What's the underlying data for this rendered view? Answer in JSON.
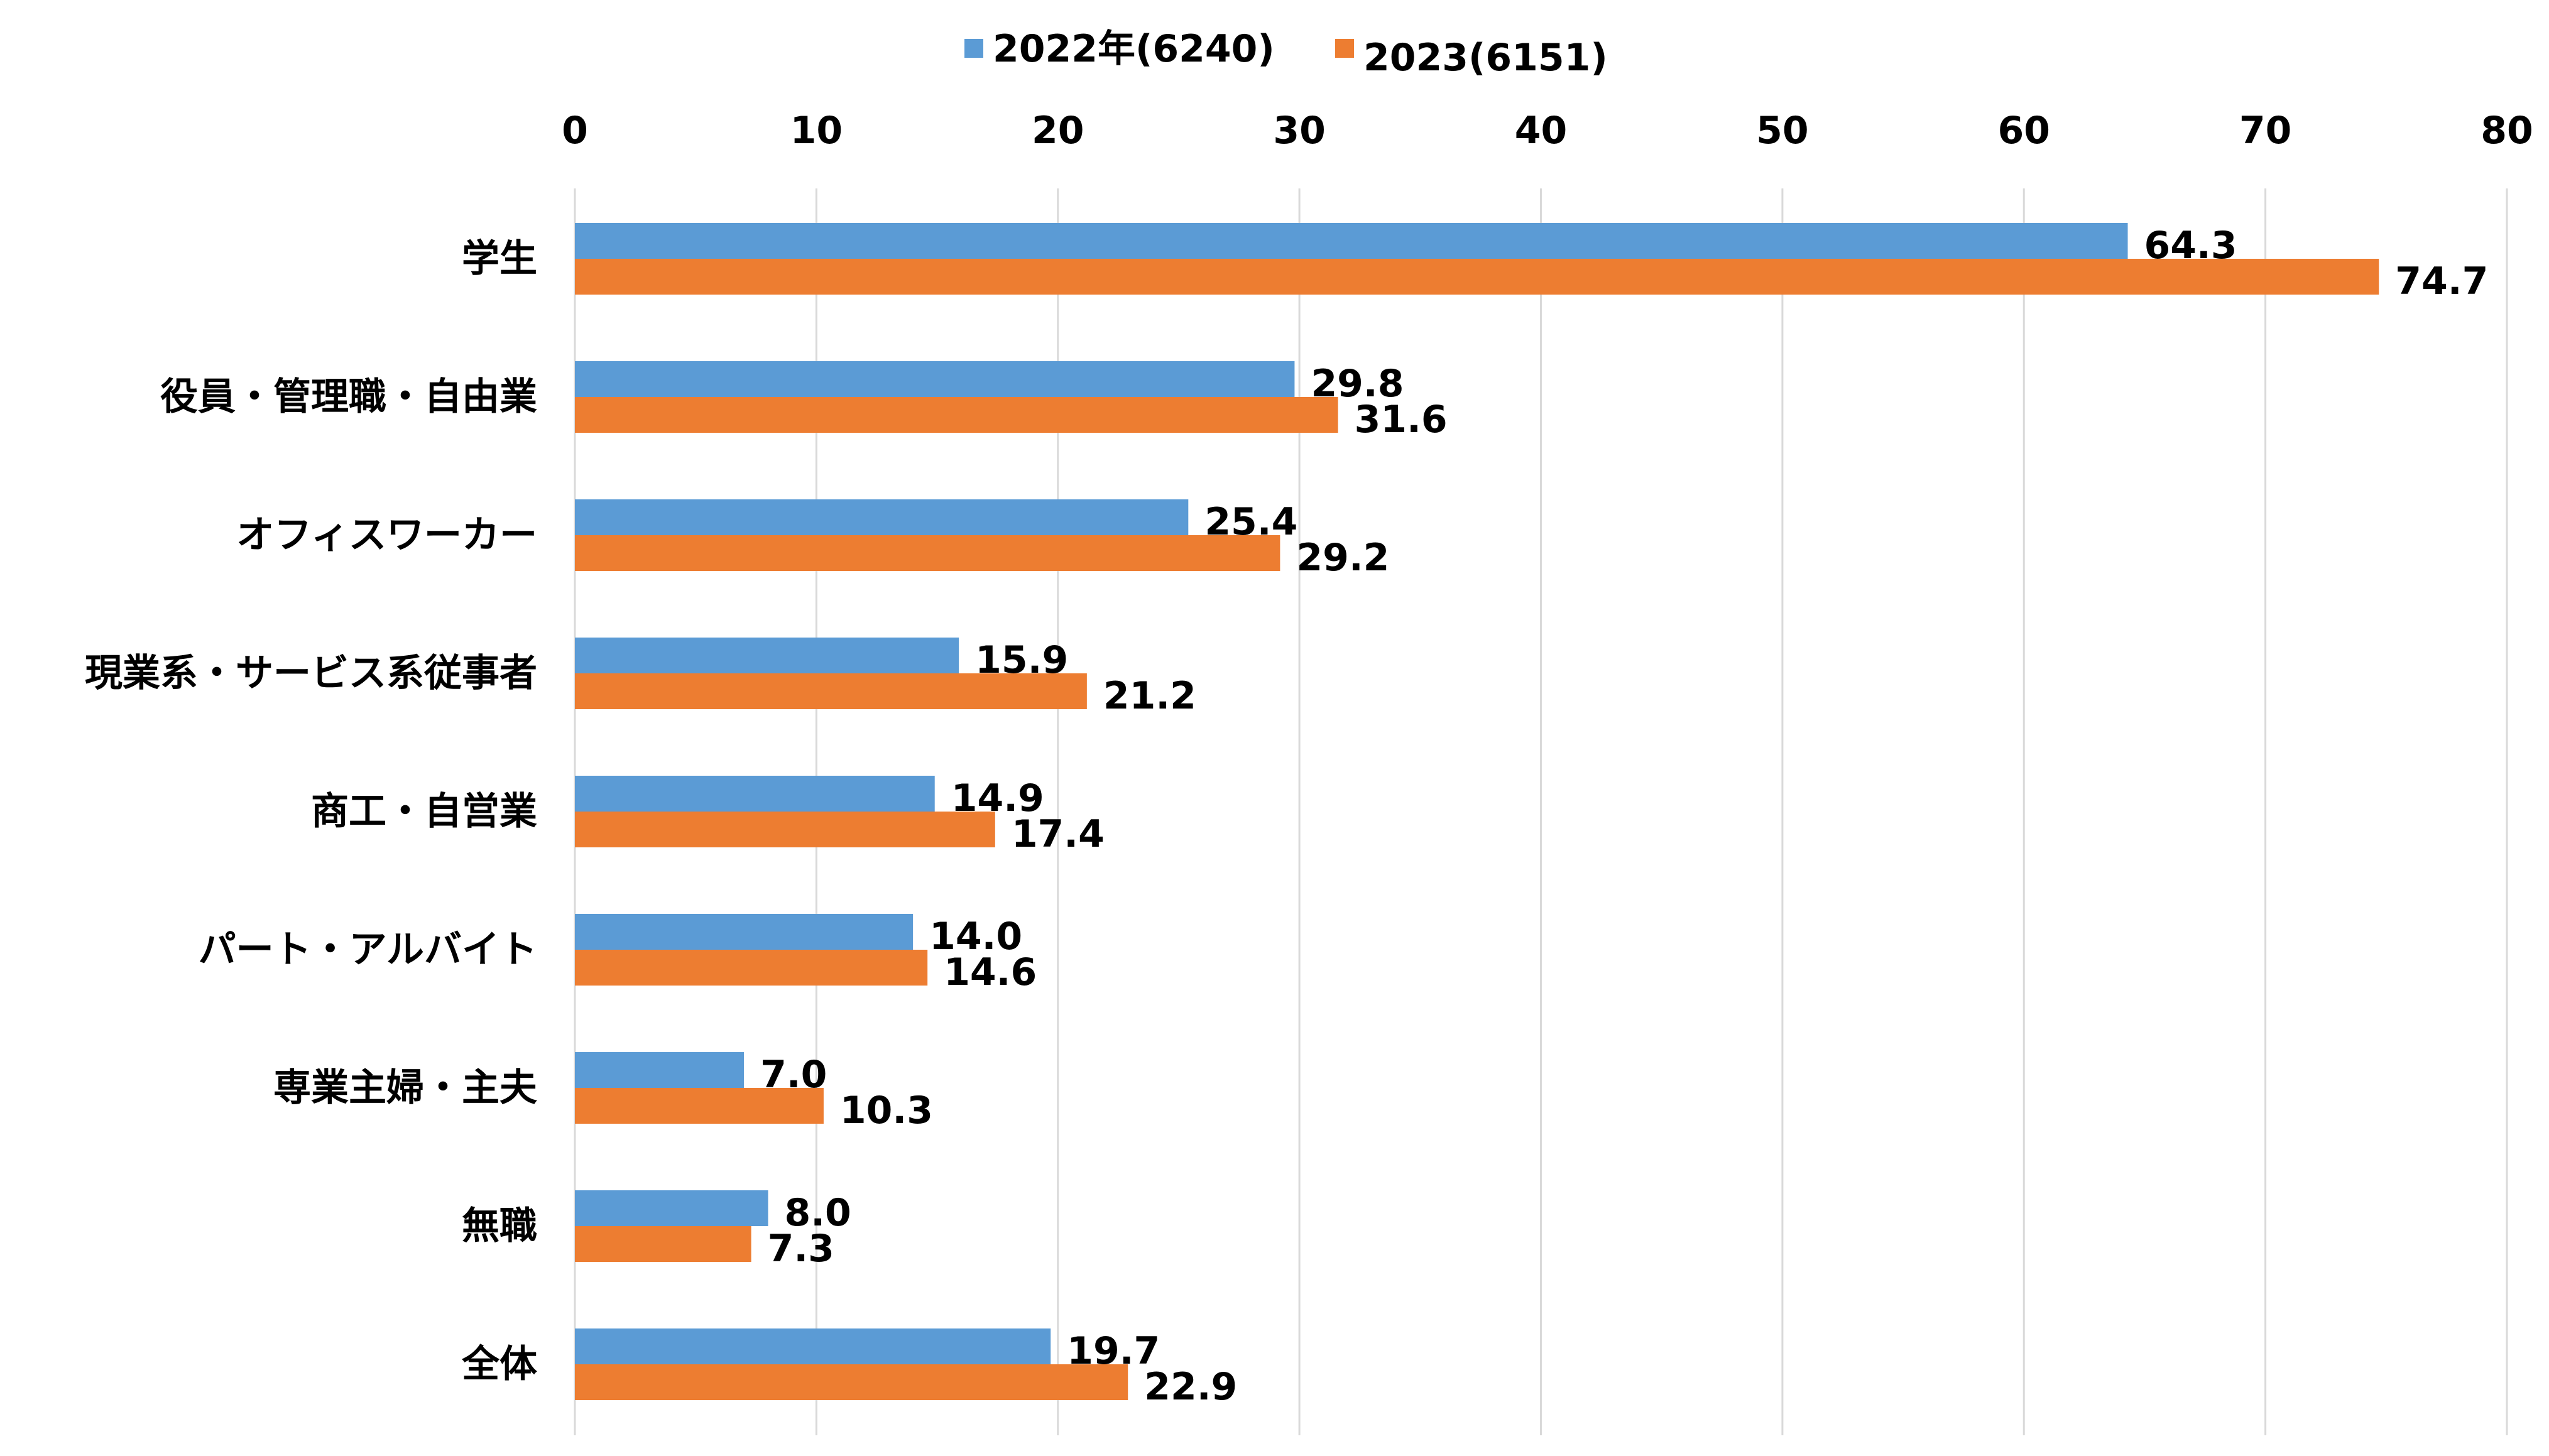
{
  "chart_data": {
    "type": "bar",
    "orientation": "horizontal",
    "categories": [
      "学生",
      "役員・管理職・自由業",
      "オフィスワーカー",
      "現業系・サービス系従事者",
      "商工・自営業",
      "パート・アルバイト",
      "専業主婦・主夫",
      "無職",
      "全体"
    ],
    "series": [
      {
        "name": "2022年(6240)",
        "color": "#5b9bd5",
        "values": [
          64.3,
          29.8,
          25.4,
          15.9,
          14.9,
          14.0,
          7.0,
          8.0,
          19.7
        ]
      },
      {
        "name": "2023(6151)",
        "color": "#ed7d31",
        "values": [
          74.7,
          31.6,
          29.2,
          21.2,
          17.4,
          14.6,
          10.3,
          7.3,
          22.9
        ]
      }
    ],
    "xlim": [
      0,
      80
    ],
    "xticks": [
      0,
      10,
      20,
      30,
      40,
      50,
      60,
      70,
      80
    ],
    "x_axis_position": "top",
    "grid": true,
    "legend_position": "top-center"
  }
}
